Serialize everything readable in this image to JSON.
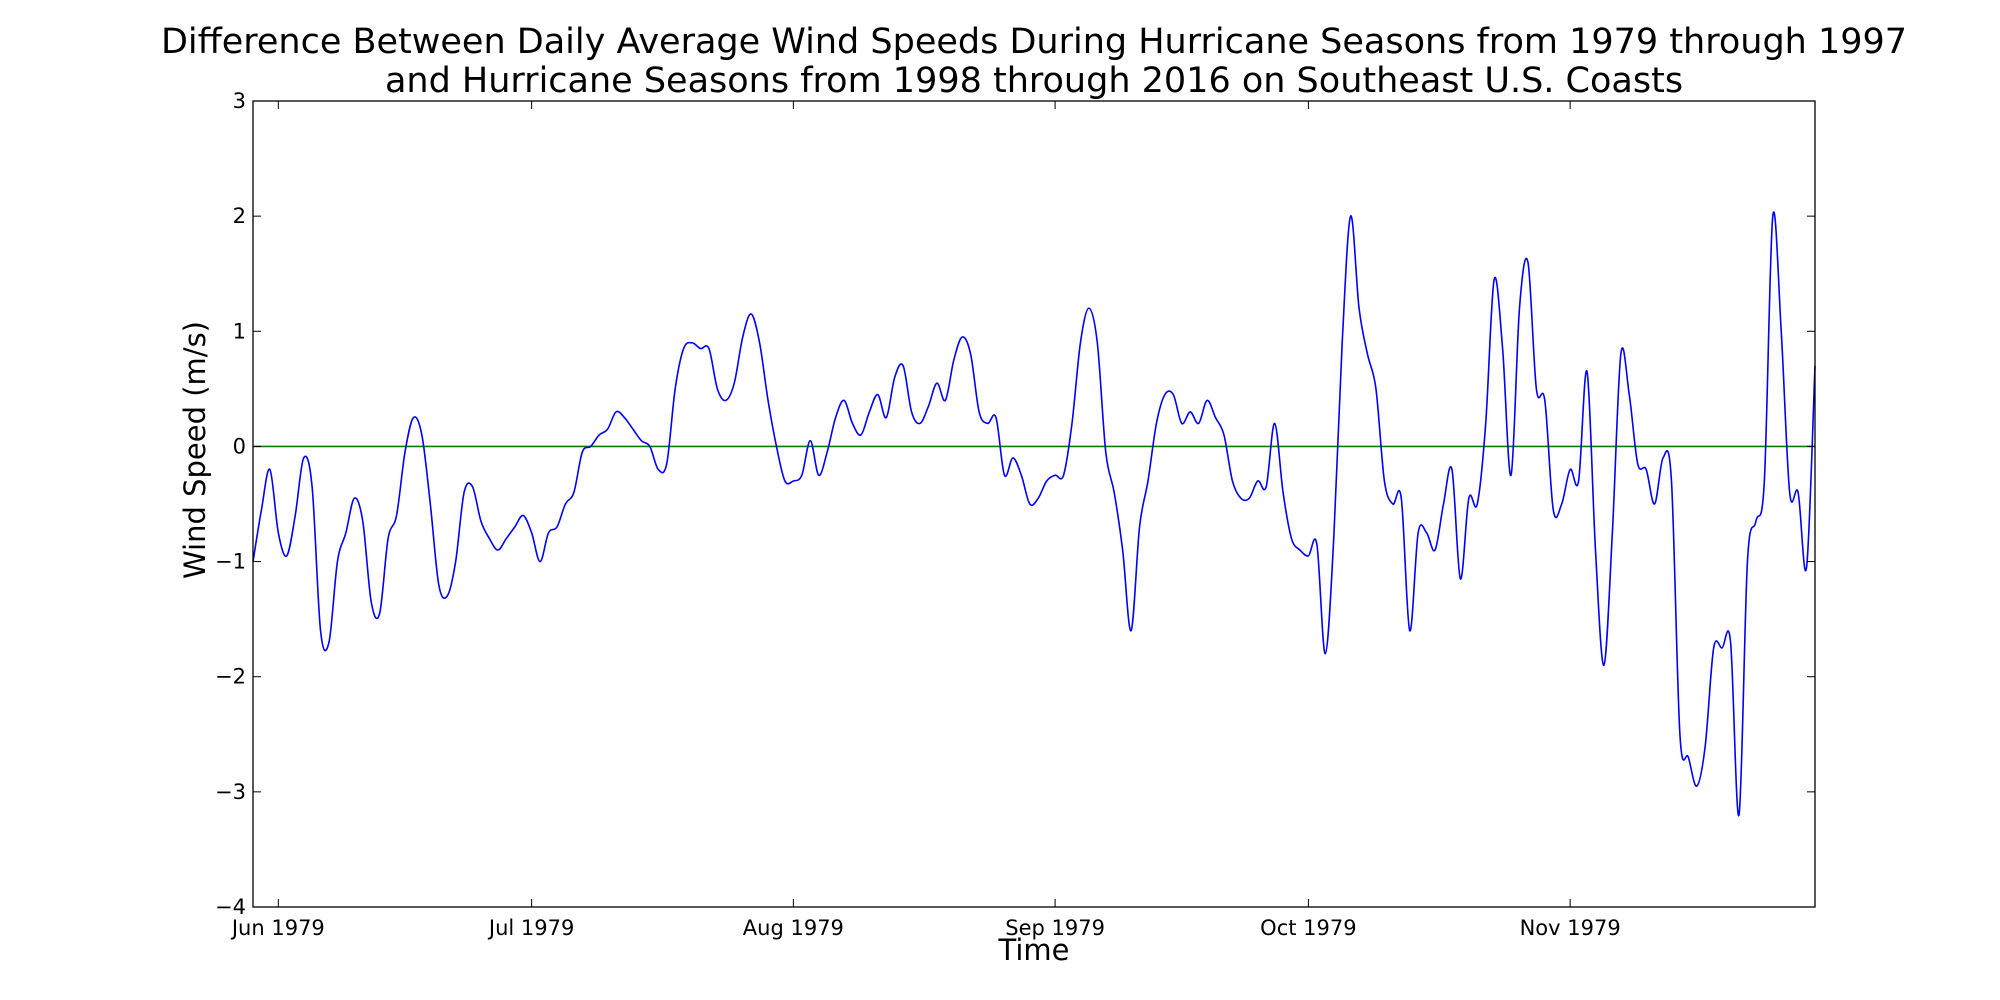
{
  "chart_data": {
    "type": "line",
    "title_lines": [
      "Difference Between Daily Average Wind Speeds During Hurricane Seasons from 1979 through 1997",
      "and Hurricane Seasons from 1998 through 2016 on Southeast U.S. Coasts"
    ],
    "xlabel": "Time",
    "ylabel": "Wind Speed (m/s)",
    "xlim": [
      "1979-05-29",
      "1979-11-30"
    ],
    "ylim": [
      -4,
      3
    ],
    "yticks": [
      3,
      2,
      1,
      0,
      -1,
      -2,
      -3,
      -4
    ],
    "ytick_labels": [
      "3",
      "2",
      "1",
      "0",
      "−1",
      "−2",
      "−3",
      "−4"
    ],
    "xticks": [
      {
        "date": "1979-06-01",
        "label": "Jun 1979"
      },
      {
        "date": "1979-07-01",
        "label": "Jul 1979"
      },
      {
        "date": "1979-08-01",
        "label": "Aug 1979"
      },
      {
        "date": "1979-09-01",
        "label": "Sep 1979"
      },
      {
        "date": "1979-10-01",
        "label": "Oct 1979"
      },
      {
        "date": "1979-11-01",
        "label": "Nov 1979"
      }
    ],
    "grid": false,
    "reference_line": {
      "y": 0,
      "color": "#008000"
    },
    "series": [
      {
        "color": "#0000ff",
        "points": [
          [
            "1979-05-29",
            -1.0
          ],
          [
            "1979-05-30",
            -0.55
          ],
          [
            "1979-05-31",
            -0.2
          ],
          [
            "1979-06-01",
            -0.75
          ],
          [
            "1979-06-02",
            -0.95
          ],
          [
            "1979-06-03",
            -0.6
          ],
          [
            "1979-06-04",
            -0.1
          ],
          [
            "1979-06-05",
            -0.35
          ],
          [
            "1979-06-06",
            -1.6
          ],
          [
            "1979-06-07",
            -1.7
          ],
          [
            "1979-06-08",
            -1.0
          ],
          [
            "1979-06-09",
            -0.75
          ],
          [
            "1979-06-10",
            -0.45
          ],
          [
            "1979-06-11",
            -0.65
          ],
          [
            "1979-06-12",
            -1.35
          ],
          [
            "1979-06-13",
            -1.45
          ],
          [
            "1979-06-14",
            -0.8
          ],
          [
            "1979-06-15",
            -0.6
          ],
          [
            "1979-06-16",
            -0.05
          ],
          [
            "1979-06-17",
            0.25
          ],
          [
            "1979-06-18",
            0.1
          ],
          [
            "1979-06-19",
            -0.5
          ],
          [
            "1979-06-20",
            -1.2
          ],
          [
            "1979-06-21",
            -1.3
          ],
          [
            "1979-06-22",
            -1.0
          ],
          [
            "1979-06-23",
            -0.4
          ],
          [
            "1979-06-24",
            -0.35
          ],
          [
            "1979-06-25",
            -0.65
          ],
          [
            "1979-06-26",
            -0.8
          ],
          [
            "1979-06-27",
            -0.9
          ],
          [
            "1979-06-28",
            -0.8
          ],
          [
            "1979-06-29",
            -0.7
          ],
          [
            "1979-06-30",
            -0.6
          ],
          [
            "1979-07-01",
            -0.75
          ],
          [
            "1979-07-02",
            -1.0
          ],
          [
            "1979-07-03",
            -0.75
          ],
          [
            "1979-07-04",
            -0.7
          ],
          [
            "1979-07-05",
            -0.5
          ],
          [
            "1979-07-06",
            -0.4
          ],
          [
            "1979-07-07",
            -0.05
          ],
          [
            "1979-07-08",
            0.0
          ],
          [
            "1979-07-09",
            0.1
          ],
          [
            "1979-07-10",
            0.15
          ],
          [
            "1979-07-11",
            0.3
          ],
          [
            "1979-07-12",
            0.25
          ],
          [
            "1979-07-13",
            0.15
          ],
          [
            "1979-07-14",
            0.05
          ],
          [
            "1979-07-15",
            0.0
          ],
          [
            "1979-07-16",
            -0.2
          ],
          [
            "1979-07-17",
            -0.15
          ],
          [
            "1979-07-18",
            0.5
          ],
          [
            "1979-07-19",
            0.85
          ],
          [
            "1979-07-20",
            0.9
          ],
          [
            "1979-07-21",
            0.85
          ],
          [
            "1979-07-22",
            0.85
          ],
          [
            "1979-07-23",
            0.5
          ],
          [
            "1979-07-24",
            0.4
          ],
          [
            "1979-07-25",
            0.55
          ],
          [
            "1979-07-26",
            0.95
          ],
          [
            "1979-07-27",
            1.15
          ],
          [
            "1979-07-28",
            0.9
          ],
          [
            "1979-07-29",
            0.4
          ],
          [
            "1979-07-30",
            0.0
          ],
          [
            "1979-07-31",
            -0.3
          ],
          [
            "1979-08-01",
            -0.3
          ],
          [
            "1979-08-02",
            -0.25
          ],
          [
            "1979-08-03",
            0.05
          ],
          [
            "1979-08-04",
            -0.25
          ],
          [
            "1979-08-05",
            -0.05
          ],
          [
            "1979-08-06",
            0.25
          ],
          [
            "1979-08-07",
            0.4
          ],
          [
            "1979-08-08",
            0.2
          ],
          [
            "1979-08-09",
            0.1
          ],
          [
            "1979-08-10",
            0.3
          ],
          [
            "1979-08-11",
            0.45
          ],
          [
            "1979-08-12",
            0.25
          ],
          [
            "1979-08-13",
            0.6
          ],
          [
            "1979-08-14",
            0.7
          ],
          [
            "1979-08-15",
            0.3
          ],
          [
            "1979-08-16",
            0.2
          ],
          [
            "1979-08-17",
            0.35
          ],
          [
            "1979-08-18",
            0.55
          ],
          [
            "1979-08-19",
            0.4
          ],
          [
            "1979-08-20",
            0.75
          ],
          [
            "1979-08-21",
            0.95
          ],
          [
            "1979-08-22",
            0.8
          ],
          [
            "1979-08-23",
            0.3
          ],
          [
            "1979-08-24",
            0.2
          ],
          [
            "1979-08-25",
            0.25
          ],
          [
            "1979-08-26",
            -0.25
          ],
          [
            "1979-08-27",
            -0.1
          ],
          [
            "1979-08-28",
            -0.25
          ],
          [
            "1979-08-29",
            -0.5
          ],
          [
            "1979-08-30",
            -0.45
          ],
          [
            "1979-08-31",
            -0.3
          ],
          [
            "1979-09-01",
            -0.25
          ],
          [
            "1979-09-02",
            -0.25
          ],
          [
            "1979-09-03",
            0.2
          ],
          [
            "1979-09-04",
            0.9
          ],
          [
            "1979-09-05",
            1.2
          ],
          [
            "1979-09-06",
            0.9
          ],
          [
            "1979-09-07",
            -0.05
          ],
          [
            "1979-09-08",
            -0.4
          ],
          [
            "1979-09-09",
            -0.9
          ],
          [
            "1979-09-10",
            -1.6
          ],
          [
            "1979-09-11",
            -0.7
          ],
          [
            "1979-09-12",
            -0.3
          ],
          [
            "1979-09-13",
            0.2
          ],
          [
            "1979-09-14",
            0.45
          ],
          [
            "1979-09-15",
            0.45
          ],
          [
            "1979-09-16",
            0.2
          ],
          [
            "1979-09-17",
            0.3
          ],
          [
            "1979-09-18",
            0.2
          ],
          [
            "1979-09-19",
            0.4
          ],
          [
            "1979-09-20",
            0.25
          ],
          [
            "1979-09-21",
            0.1
          ],
          [
            "1979-09-22",
            -0.3
          ],
          [
            "1979-09-23",
            -0.45
          ],
          [
            "1979-09-24",
            -0.45
          ],
          [
            "1979-09-25",
            -0.3
          ],
          [
            "1979-09-26",
            -0.35
          ],
          [
            "1979-09-27",
            0.2
          ],
          [
            "1979-09-28",
            -0.4
          ],
          [
            "1979-09-29",
            -0.8
          ],
          [
            "1979-09-30",
            -0.9
          ],
          [
            "1979-10-01",
            -0.95
          ],
          [
            "1979-10-02",
            -0.85
          ],
          [
            "1979-10-03",
            -1.8
          ],
          [
            "1979-10-04",
            -0.8
          ],
          [
            "1979-10-05",
            0.9
          ],
          [
            "1979-10-06",
            2.0
          ],
          [
            "1979-10-07",
            1.2
          ],
          [
            "1979-10-08",
            0.8
          ],
          [
            "1979-10-09",
            0.5
          ],
          [
            "1979-10-10",
            -0.3
          ],
          [
            "1979-10-11",
            -0.5
          ],
          [
            "1979-10-12",
            -0.45
          ],
          [
            "1979-10-13",
            -1.6
          ],
          [
            "1979-10-14",
            -0.75
          ],
          [
            "1979-10-15",
            -0.75
          ],
          [
            "1979-10-16",
            -0.9
          ],
          [
            "1979-10-17",
            -0.5
          ],
          [
            "1979-10-18",
            -0.2
          ],
          [
            "1979-10-19",
            -1.15
          ],
          [
            "1979-10-20",
            -0.45
          ],
          [
            "1979-10-21",
            -0.5
          ],
          [
            "1979-10-22",
            0.2
          ],
          [
            "1979-10-23",
            1.45
          ],
          [
            "1979-10-24",
            0.85
          ],
          [
            "1979-10-25",
            -0.25
          ],
          [
            "1979-10-26",
            1.2
          ],
          [
            "1979-10-27",
            1.6
          ],
          [
            "1979-10-28",
            0.5
          ],
          [
            "1979-10-29",
            0.4
          ],
          [
            "1979-10-30",
            -0.55
          ],
          [
            "1979-10-31",
            -0.5
          ],
          [
            "1979-11-01",
            -0.2
          ],
          [
            "1979-11-02",
            -0.3
          ],
          [
            "1979-11-03",
            0.65
          ],
          [
            "1979-11-04",
            -0.9
          ],
          [
            "1979-11-05",
            -1.9
          ],
          [
            "1979-11-06",
            -0.75
          ],
          [
            "1979-11-07",
            0.8
          ],
          [
            "1979-11-08",
            0.45
          ],
          [
            "1979-11-09",
            -0.15
          ],
          [
            "1979-11-10",
            -0.2
          ],
          [
            "1979-11-11",
            -0.5
          ],
          [
            "1979-11-12",
            -0.1
          ],
          [
            "1979-11-13",
            -0.3
          ],
          [
            "1979-11-14",
            -2.5
          ],
          [
            "1979-11-15",
            -2.7
          ],
          [
            "1979-11-16",
            -2.95
          ],
          [
            "1979-11-17",
            -2.6
          ],
          [
            "1979-11-18",
            -1.75
          ],
          [
            "1979-11-19",
            -1.75
          ],
          [
            "1979-11-20",
            -1.7
          ],
          [
            "1979-11-21",
            -3.2
          ],
          [
            "1979-11-22",
            -1.0
          ],
          [
            "1979-11-23",
            -0.65
          ],
          [
            "1979-11-24",
            -0.3
          ],
          [
            "1979-11-25",
            2.0
          ],
          [
            "1979-11-26",
            1.0
          ],
          [
            "1979-11-27",
            -0.4
          ],
          [
            "1979-11-28",
            -0.4
          ],
          [
            "1979-11-29",
            -1.05
          ],
          [
            "1979-11-30",
            0.7
          ]
        ]
      }
    ]
  }
}
